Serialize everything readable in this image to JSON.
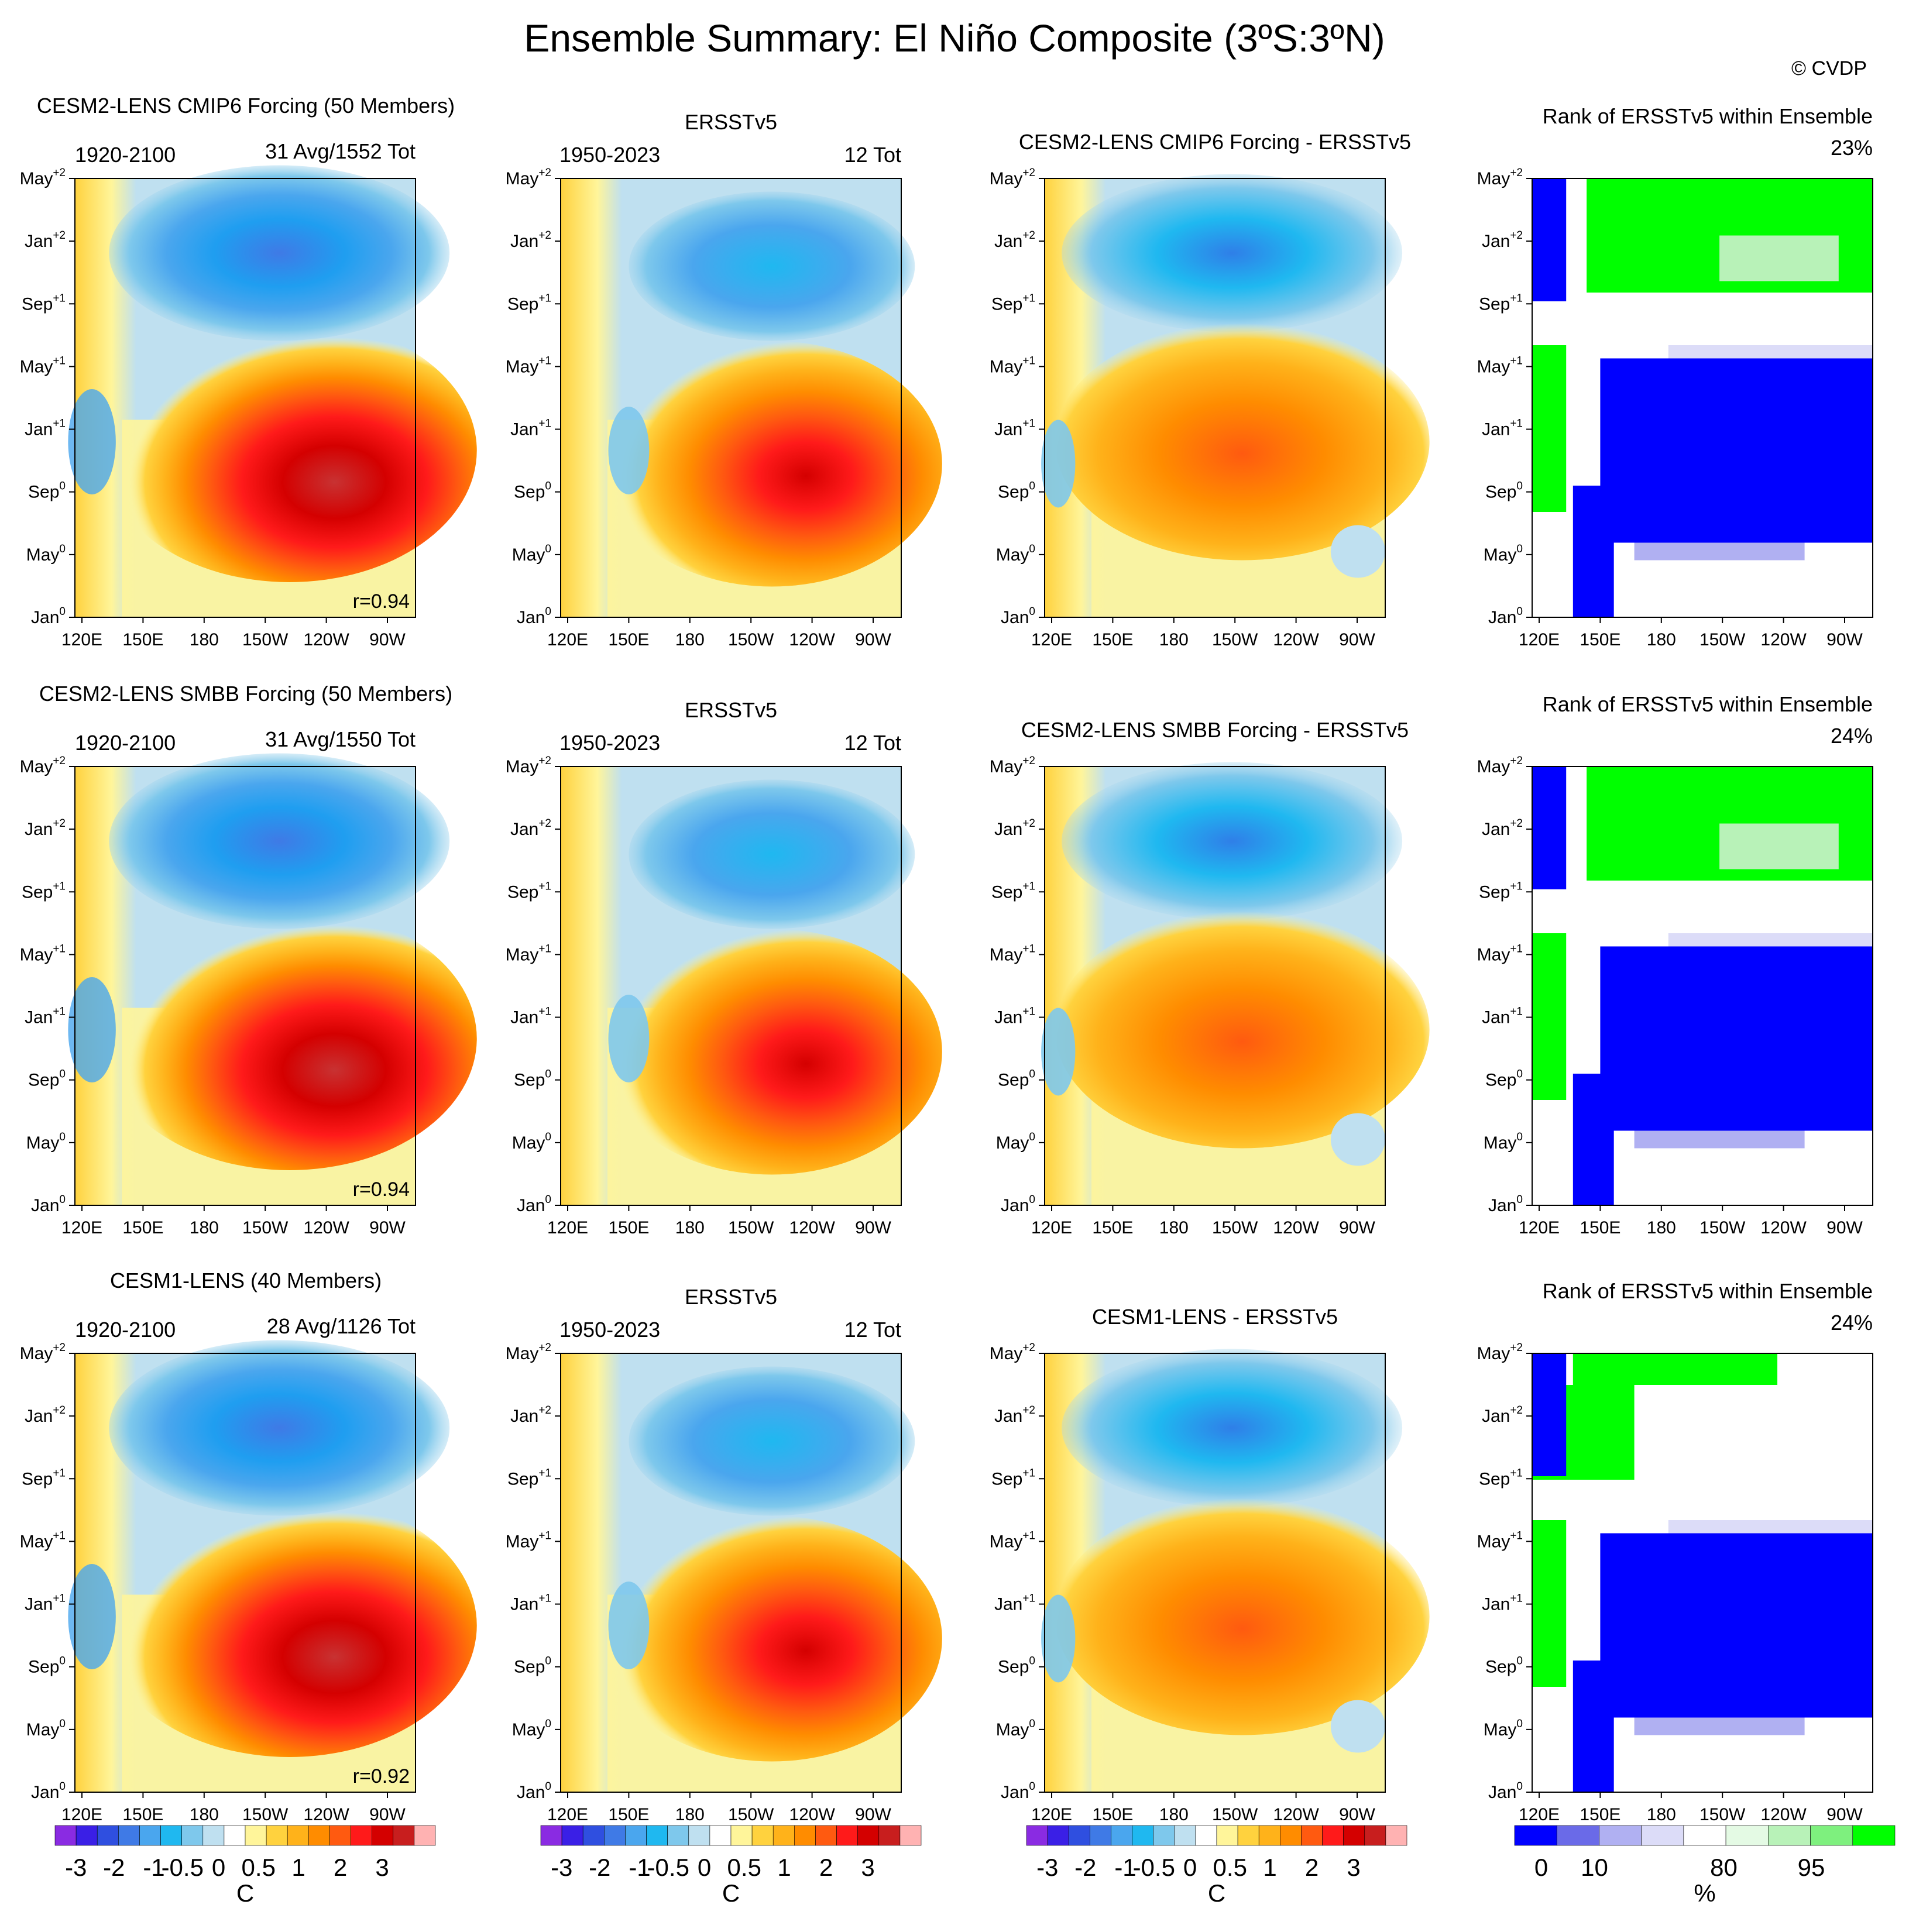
{
  "figure": {
    "title": "Ensemble Summary: El Niño Composite (3ºS:3ºN)",
    "watermark": "© CVDP",
    "x_ticks": [
      "120E",
      "150E",
      "180",
      "150W",
      "120W",
      "90W"
    ],
    "y_ticks": [
      {
        "base": "Jan",
        "sup": "0"
      },
      {
        "base": "May",
        "sup": "0"
      },
      {
        "base": "Sep",
        "sup": "0"
      },
      {
        "base": "Jan",
        "sup": "+1"
      },
      {
        "base": "May",
        "sup": "+1"
      },
      {
        "base": "Sep",
        "sup": "+1"
      },
      {
        "base": "Jan",
        "sup": "+2"
      },
      {
        "base": "May",
        "sup": "+2"
      }
    ]
  },
  "rows": [
    {
      "model_label": "CESM2-LENS CMIP6 Forcing (50 Members)",
      "model_color": "#1a6f8c",
      "model": {
        "period": "1920-2100",
        "count": "31 Avg/1552 Tot",
        "corr": "r=0.94"
      },
      "obs": {
        "title": "ERSSTv5",
        "period": "1950-2023",
        "count": "12 Tot"
      },
      "diff": {
        "title": "CESM2-LENS CMIP6 Forcing - ERSSTv5"
      },
      "rank": {
        "title": "Rank of ERSSTv5 within Ensemble",
        "pct": "23%"
      }
    },
    {
      "model_label": "CESM2-LENS SMBB Forcing (50 Members)",
      "model_color": "#5e8a6e",
      "model": {
        "period": "1920-2100",
        "count": "31 Avg/1550 Tot",
        "corr": "r=0.94"
      },
      "obs": {
        "title": "ERSSTv5",
        "period": "1950-2023",
        "count": "12 Tot"
      },
      "diff": {
        "title": "CESM2-LENS SMBB Forcing - ERSSTv5"
      },
      "rank": {
        "title": "Rank of ERSSTv5 within Ensemble",
        "pct": "24%"
      }
    },
    {
      "model_label": "CESM1-LENS (40 Members)",
      "model_color": "#c9bf7a",
      "model": {
        "period": "1920-2100",
        "count": "28 Avg/1126 Tot",
        "corr": "r=0.92"
      },
      "obs": {
        "title": "ERSSTv5",
        "period": "1950-2023",
        "count": "12 Tot"
      },
      "diff": {
        "title": "CESM1-LENS - ERSSTv5"
      },
      "rank": {
        "title": "Rank of ERSSTv5 within Ensemble",
        "pct": "24%"
      }
    }
  ],
  "colorbars": {
    "sst": {
      "colors": [
        "#8a2be2",
        "#3a1fe6",
        "#2f4fe0",
        "#3f7ae6",
        "#4aa6ee",
        "#1fb8f0",
        "#7ec8ec",
        "#bfe0f0",
        "#ffffff",
        "#fff59a",
        "#ffd23e",
        "#ffb21a",
        "#ff8c00",
        "#ff5a10",
        "#ff1a1a",
        "#d40000",
        "#c81e1e",
        "#ffb2b2"
      ],
      "labels": [
        "-3",
        "-2",
        "-1",
        "-0.5",
        "0",
        "0.5",
        "1",
        "2",
        "3"
      ],
      "unit": "C"
    },
    "rank": {
      "colors": [
        "#0000ff",
        "#6a6ae8",
        "#b0b0f2",
        "#dcdcf8",
        "#ffffff",
        "#e4fae4",
        "#b8f2b8",
        "#7ef07e",
        "#00ff00"
      ],
      "labels": [
        "0",
        "10",
        "80",
        "95"
      ],
      "unit": "%"
    }
  },
  "chart_data": [
    {
      "type": "heatmap",
      "panel": "row1-model",
      "title": "CESM2-LENS CMIP6 Forcing (50 Members)",
      "x": [
        "120E",
        "150E",
        "180",
        "150W",
        "120W",
        "90W"
      ],
      "y": [
        "Jan0",
        "May0",
        "Sep0",
        "Jan+1",
        "May+1",
        "Sep+1",
        "Jan+2",
        "May+2"
      ],
      "peak_warm_C": 3,
      "peak_cold_C": -2,
      "corr": 0.94
    },
    {
      "type": "heatmap",
      "panel": "row1-obs",
      "title": "ERSSTv5",
      "peak_warm_C": 2,
      "peak_cold_C": -1
    },
    {
      "type": "heatmap",
      "panel": "row1-diff",
      "title": "CESM2-LENS CMIP6 Forcing - ERSSTv5"
    },
    {
      "type": "heatmap",
      "panel": "row1-rank",
      "title": "Rank of ERSSTv5 within Ensemble",
      "value_pct": 23
    },
    {
      "type": "heatmap",
      "panel": "row2-model",
      "title": "CESM2-LENS SMBB Forcing (50 Members)",
      "corr": 0.94
    },
    {
      "type": "heatmap",
      "panel": "row2-obs",
      "title": "ERSSTv5"
    },
    {
      "type": "heatmap",
      "panel": "row2-diff",
      "title": "CESM2-LENS SMBB Forcing - ERSSTv5"
    },
    {
      "type": "heatmap",
      "panel": "row2-rank",
      "title": "Rank of ERSSTv5 within Ensemble",
      "value_pct": 24
    },
    {
      "type": "heatmap",
      "panel": "row3-model",
      "title": "CESM1-LENS (40 Members)",
      "corr": 0.92
    },
    {
      "type": "heatmap",
      "panel": "row3-obs",
      "title": "ERSSTv5"
    },
    {
      "type": "heatmap",
      "panel": "row3-diff",
      "title": "CESM1-LENS - ERSSTv5"
    },
    {
      "type": "heatmap",
      "panel": "row3-rank",
      "title": "Rank of ERSSTv5 within Ensemble",
      "value_pct": 24
    }
  ]
}
